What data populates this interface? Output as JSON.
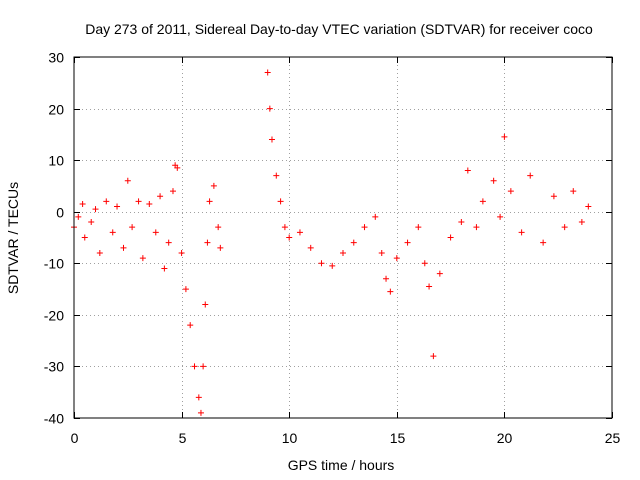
{
  "chart_data": {
    "type": "scatter",
    "title": "Day 273 of 2011, Sidereal Day-to-day VTEC variation (SDTVAR) for receiver coco",
    "xlabel": "GPS time / hours",
    "ylabel": "SDTVAR / TECUs",
    "xlim": [
      0,
      25
    ],
    "ylim": [
      -40,
      30
    ],
    "x_ticks": [
      0,
      5,
      10,
      15,
      20,
      25
    ],
    "x_tick_labels": [
      "0",
      "5",
      "10",
      "15",
      "20",
      "25"
    ],
    "y_ticks": [
      -40,
      -30,
      -20,
      -10,
      0,
      10,
      20,
      30
    ],
    "y_tick_labels": [
      "-40",
      "-30",
      "-20",
      "-10",
      "0",
      "10",
      "20",
      "30"
    ],
    "grid": true,
    "marker": "+",
    "series_color": "#ff0000",
    "series": [
      {
        "name": "SDTVAR",
        "x": [
          0.0,
          0.2,
          0.4,
          0.5,
          0.8,
          1.0,
          1.2,
          1.5,
          1.8,
          2.0,
          2.3,
          2.5,
          2.7,
          3.0,
          3.2,
          3.5,
          3.8,
          4.0,
          4.2,
          4.4,
          4.6,
          4.7,
          4.8,
          5.0,
          5.2,
          5.4,
          5.6,
          5.8,
          5.9,
          6.0,
          6.1,
          6.2,
          6.3,
          6.5,
          6.7,
          6.8,
          9.0,
          9.1,
          9.2,
          9.4,
          9.6,
          9.8,
          10.0,
          10.5,
          11.0,
          11.5,
          12.0,
          12.5,
          13.0,
          13.5,
          14.0,
          14.3,
          14.5,
          14.7,
          15.0,
          15.5,
          16.0,
          16.3,
          16.5,
          16.7,
          17.0,
          17.5,
          18.0,
          18.3,
          18.7,
          19.0,
          19.5,
          19.8,
          20.0,
          20.3,
          20.8,
          21.2,
          21.8,
          22.3,
          22.8,
          23.2,
          23.6,
          23.9
        ],
        "y": [
          -3.0,
          -1.0,
          1.5,
          -5.0,
          -2.0,
          0.5,
          -8.0,
          2.0,
          -4.0,
          1.0,
          -7.0,
          6.0,
          -3.0,
          2.0,
          -9.0,
          1.5,
          -4.0,
          3.0,
          -11.0,
          -6.0,
          4.0,
          9.0,
          8.5,
          -8.0,
          -15.0,
          -22.0,
          -30.0,
          -36.0,
          -39.0,
          -30.0,
          -18.0,
          -6.0,
          2.0,
          5.0,
          -3.0,
          -7.0,
          27.0,
          20.0,
          14.0,
          7.0,
          2.0,
          -3.0,
          -5.0,
          -4.0,
          -7.0,
          -10.0,
          -10.5,
          -8.0,
          -6.0,
          -3.0,
          -1.0,
          -8.0,
          -13.0,
          -15.5,
          -9.0,
          -6.0,
          -3.0,
          -10.0,
          -14.5,
          -28.0,
          -12.0,
          -5.0,
          -2.0,
          8.0,
          -3.0,
          2.0,
          6.0,
          -1.0,
          14.5,
          4.0,
          -4.0,
          7.0,
          -6.0,
          3.0,
          -3.0,
          4.0,
          -2.0,
          1.0
        ]
      }
    ]
  }
}
